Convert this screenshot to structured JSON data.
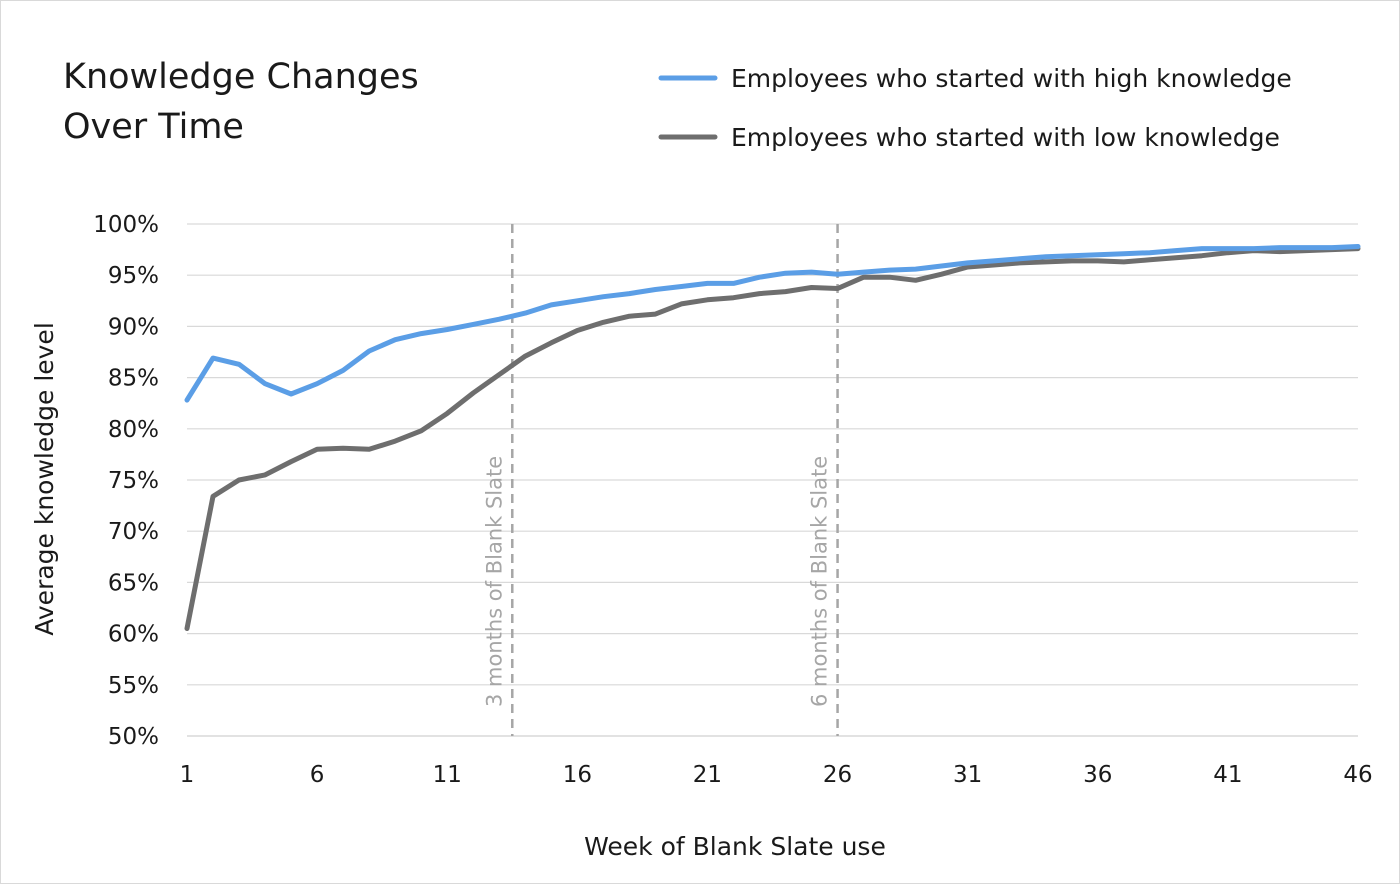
{
  "chart_data": {
    "type": "line",
    "title_lines": [
      "Knowledge Changes",
      "Over Time"
    ],
    "xlabel": "Week of Blank Slate use",
    "ylabel": "Average knowledge level",
    "x_ticks": [
      1,
      6,
      11,
      16,
      21,
      26,
      31,
      36,
      41,
      46
    ],
    "x_range": [
      1,
      46
    ],
    "y_ticks": [
      "100%",
      "95%",
      "90%",
      "85%",
      "80%",
      "75%",
      "70%",
      "65%",
      "60%",
      "55%",
      "50%"
    ],
    "y_tick_values": [
      100,
      95,
      90,
      85,
      80,
      75,
      70,
      65,
      60,
      55,
      50
    ],
    "ylim": [
      50,
      100
    ],
    "grid": "horizontal",
    "legend_position": "top-right",
    "annotations": [
      {
        "label": "3 months of Blank Slate",
        "x": 13.5
      },
      {
        "label": "6 months of Blank Slate",
        "x": 26
      }
    ],
    "series": [
      {
        "name": "Employees who started with high knowledge",
        "color": "#5b9ee6",
        "x": [
          1,
          2,
          3,
          4,
          5,
          6,
          7,
          8,
          9,
          10,
          11,
          12,
          13,
          14,
          15,
          16,
          17,
          18,
          19,
          20,
          21,
          22,
          23,
          24,
          25,
          26,
          27,
          28,
          29,
          30,
          31,
          32,
          33,
          34,
          35,
          36,
          37,
          38,
          39,
          40,
          41,
          42,
          43,
          44,
          45,
          46
        ],
        "values": [
          82.8,
          86.9,
          86.3,
          84.4,
          83.4,
          84.4,
          85.7,
          87.6,
          88.7,
          89.3,
          89.7,
          90.2,
          90.7,
          91.3,
          92.1,
          92.5,
          92.9,
          93.2,
          93.6,
          93.9,
          94.2,
          94.2,
          94.8,
          95.2,
          95.3,
          95.1,
          95.3,
          95.5,
          95.6,
          95.9,
          96.2,
          96.4,
          96.6,
          96.8,
          96.9,
          97.0,
          97.1,
          97.2,
          97.4,
          97.6,
          97.6,
          97.6,
          97.7,
          97.7,
          97.7,
          97.8
        ]
      },
      {
        "name": "Employees who started with low knowledge",
        "color": "#6e6e6e",
        "x": [
          1,
          2,
          3,
          4,
          5,
          6,
          7,
          8,
          9,
          10,
          11,
          12,
          13,
          14,
          15,
          16,
          17,
          18,
          19,
          20,
          21,
          22,
          23,
          24,
          25,
          26,
          27,
          28,
          29,
          30,
          31,
          32,
          33,
          34,
          35,
          36,
          37,
          38,
          39,
          40,
          41,
          42,
          43,
          44,
          45,
          46
        ],
        "values": [
          60.5,
          73.4,
          75.0,
          75.5,
          76.8,
          78.0,
          78.1,
          78.0,
          78.8,
          79.8,
          81.5,
          83.5,
          85.3,
          87.1,
          88.4,
          89.6,
          90.4,
          91.0,
          91.2,
          92.2,
          92.6,
          92.8,
          93.2,
          93.4,
          93.8,
          93.7,
          94.8,
          94.8,
          94.5,
          95.1,
          95.8,
          96.0,
          96.2,
          96.3,
          96.4,
          96.4,
          96.3,
          96.5,
          96.7,
          96.9,
          97.2,
          97.4,
          97.3,
          97.4,
          97.5,
          97.6
        ]
      }
    ]
  }
}
